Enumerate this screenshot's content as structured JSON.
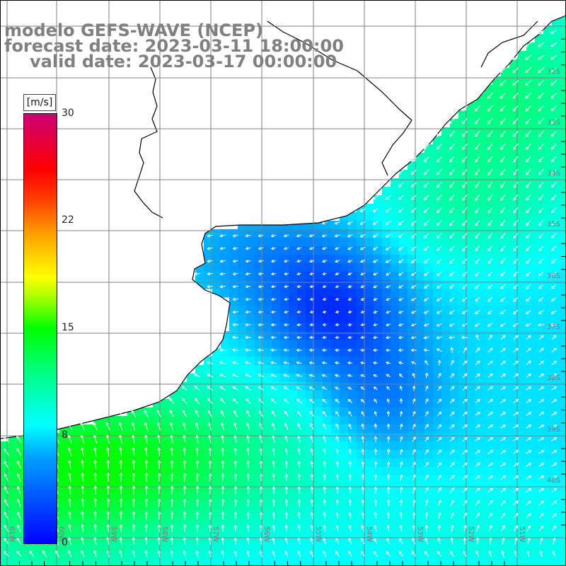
{
  "title": {
    "line1": "modelo GEFS-WAVE (NCEP)",
    "line2": "forecast date: 2023-03-11 18:00:00",
    "line3": "valid date: 2023-03-17 00:00:00"
  },
  "colorbar": {
    "unit": "[m/s]",
    "ticks": [
      "30",
      "22",
      "15",
      "8",
      "0"
    ],
    "min_value": 0,
    "max_value": 30,
    "colors": [
      "#0000ff",
      "#00a0ff",
      "#00ffff",
      "#00ff00",
      "#ffff00",
      "#ff8000",
      "#ff0000",
      "#cc0077"
    ]
  },
  "map": {
    "lat_labels": [
      "32S",
      "33S",
      "34S",
      "35S",
      "36S",
      "37S",
      "38S",
      "39S",
      "40S"
    ],
    "lon_labels": [
      "61W",
      "60W",
      "59W",
      "58W",
      "57W",
      "56W",
      "55W",
      "54W",
      "53W",
      "52W",
      "51W"
    ],
    "land_color": "#ffffff",
    "coast_color": "#000000",
    "grid_color": "#808080",
    "wind_arrow_color": "#ffffff"
  }
}
